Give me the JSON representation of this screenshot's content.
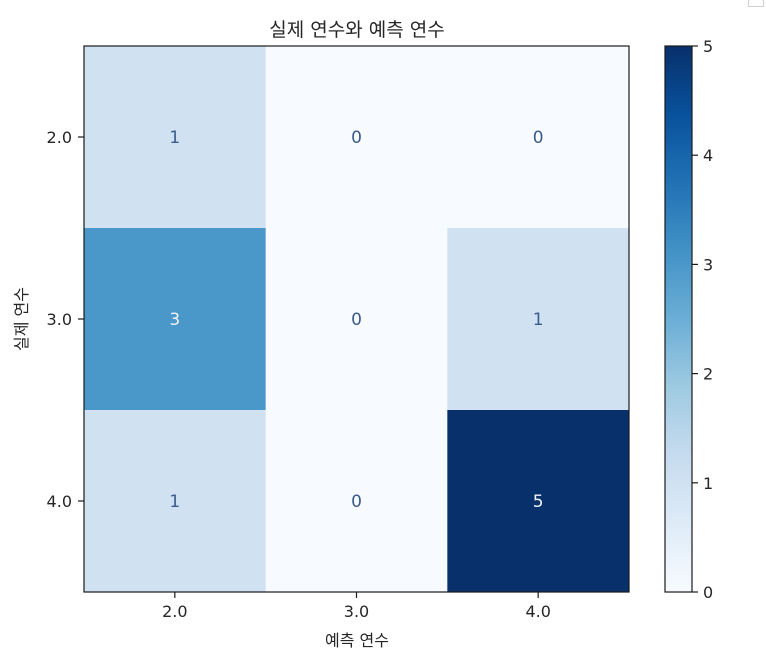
{
  "chart_data": {
    "type": "heatmap",
    "title": "실제 연수와 예측 연수",
    "xlabel": "예측 연수",
    "ylabel": "실제 연수",
    "x_categories": [
      "2.0",
      "3.0",
      "4.0"
    ],
    "y_categories": [
      "2.0",
      "3.0",
      "4.0"
    ],
    "values": [
      [
        1,
        0,
        0
      ],
      [
        3,
        0,
        1
      ],
      [
        1,
        0,
        5
      ]
    ],
    "colorbar": {
      "min": 0,
      "max": 5,
      "ticks": [
        0,
        1,
        2,
        3,
        4,
        5
      ]
    },
    "colormap": "Blues",
    "colors": {
      "text_on_light": "#3b5a8c",
      "text_on_dark": "#f0f4fa"
    }
  }
}
